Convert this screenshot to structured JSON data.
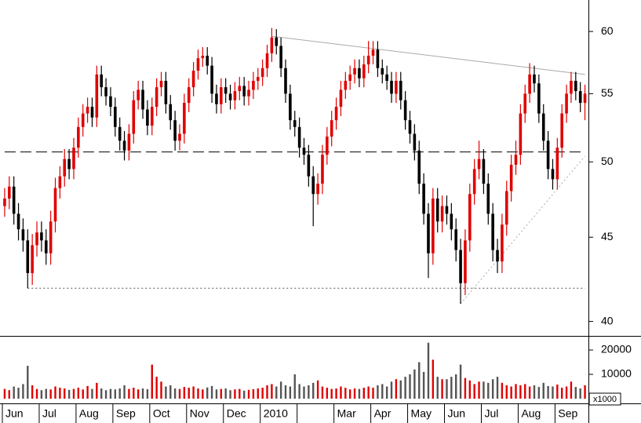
{
  "chart_data": {
    "type": "candlestick",
    "log_scale": true,
    "ylim": [
      39.2,
      62.7
    ],
    "yticks": [
      40,
      45,
      50,
      55,
      60
    ],
    "volume_ylim": [
      0,
      25800
    ],
    "volume_yticks": [
      10000,
      20000
    ],
    "volume_unit": "x1000",
    "up_color": "#e00000",
    "down_color": "#000000",
    "volume_up_color": "#e00000",
    "volume_down_color": "#555555",
    "x_labels": [
      {
        "label": "Jun",
        "start": 0
      },
      {
        "label": "Jul",
        "start": 8
      },
      {
        "label": "Aug",
        "start": 16
      },
      {
        "label": "Sep",
        "start": 24
      },
      {
        "label": "Oct",
        "start": 32
      },
      {
        "label": "Nov",
        "start": 40
      },
      {
        "label": "Dec",
        "start": 48
      },
      {
        "label": "2010",
        "start": 56
      },
      {
        "label": null,
        "start": 64
      },
      {
        "label": "Mar",
        "start": 72
      },
      {
        "label": "Apr",
        "start": 80
      },
      {
        "label": "May",
        "start": 88
      },
      {
        "label": "Jun",
        "start": 96
      },
      {
        "label": "Jul",
        "start": 104
      },
      {
        "label": "Aug",
        "start": 112
      },
      {
        "label": "Sep",
        "start": 120
      }
    ],
    "open": [
      47.0,
      47.5,
      48.3,
      46.5,
      45.5,
      44.8,
      42.8,
      44.5,
      45.3,
      44.8,
      44.0,
      46.0,
      48.2,
      49.0,
      50.2,
      49.5,
      51.0,
      52.5,
      53.5,
      54.0,
      53.2,
      56.5,
      55.5,
      54.8,
      54.0,
      52.5,
      51.5,
      50.8,
      52.0,
      54.5,
      55.3,
      53.8,
      52.6,
      54.0,
      55.5,
      56.0,
      54.2,
      53.0,
      51.5,
      52.0,
      54.3,
      55.5,
      56.8,
      57.8,
      58.0,
      57.2,
      55.0,
      54.2,
      55.5,
      55.0,
      54.5,
      55.2,
      55.6,
      54.8,
      55.3,
      56.0,
      56.3,
      57.0,
      58.2,
      59.5,
      58.8,
      57.0,
      55.0,
      53.0,
      52.5,
      51.0,
      50.5,
      49.0,
      47.8,
      48.5,
      50.5,
      51.8,
      53.0,
      54.0,
      55.3,
      56.0,
      56.5,
      57.0,
      56.2,
      57.3,
      58.0,
      58.5,
      57.0,
      56.5,
      56.0,
      55.0,
      56.0,
      54.5,
      53.0,
      52.0,
      50.8,
      48.5,
      46.5,
      44.0,
      47.5,
      46.0,
      47.0,
      46.5,
      45.5,
      44.2,
      42.2,
      44.8,
      47.8,
      49.5,
      50.2,
      48.5,
      46.5,
      44.2,
      43.5,
      45.8,
      48.0,
      49.8,
      50.5,
      53.5,
      55.0,
      56.5,
      55.8,
      53.5,
      51.5,
      49.5,
      48.8,
      51.0,
      53.5,
      55.0,
      56.0,
      55.2,
      54.3
    ],
    "high": [
      48.2,
      49.0,
      49.0,
      47.2,
      46.2,
      45.5,
      45.2,
      46.0,
      46.0,
      45.5,
      46.7,
      48.9,
      49.7,
      50.9,
      50.9,
      51.7,
      53.2,
      54.2,
      54.7,
      54.7,
      57.2,
      57.2,
      56.2,
      55.5,
      54.7,
      53.2,
      52.2,
      52.7,
      55.2,
      56.0,
      56.0,
      54.5,
      54.7,
      56.2,
      56.7,
      56.7,
      54.9,
      53.7,
      52.7,
      55.0,
      56.2,
      57.5,
      58.5,
      58.7,
      58.7,
      57.9,
      55.7,
      56.2,
      56.2,
      55.7,
      55.9,
      56.3,
      56.3,
      56.0,
      56.7,
      57.0,
      57.7,
      58.9,
      60.3,
      60.2,
      59.5,
      57.7,
      55.7,
      53.7,
      53.2,
      51.7,
      51.2,
      49.7,
      49.2,
      51.2,
      52.5,
      53.7,
      54.7,
      56.0,
      56.7,
      57.2,
      57.7,
      57.7,
      58.0,
      59.2,
      59.2,
      59.2,
      57.7,
      57.2,
      56.7,
      56.7,
      56.7,
      55.2,
      53.7,
      52.7,
      51.5,
      49.2,
      47.2,
      48.2,
      48.2,
      47.7,
      47.7,
      47.2,
      46.2,
      44.9,
      45.5,
      48.5,
      50.2,
      51.5,
      50.9,
      49.2,
      47.2,
      44.9,
      46.5,
      48.7,
      50.5,
      51.5,
      54.2,
      55.7,
      57.4,
      57.2,
      56.5,
      54.2,
      52.2,
      50.2,
      51.7,
      54.2,
      55.7,
      56.7,
      56.7,
      55.9,
      55.7
    ],
    "low": [
      46.3,
      46.8,
      45.8,
      44.8,
      44.1,
      41.9,
      42.1,
      43.8,
      44.1,
      43.3,
      43.3,
      45.3,
      47.5,
      48.3,
      48.8,
      48.8,
      50.3,
      51.8,
      52.8,
      52.5,
      52.5,
      54.8,
      54.1,
      53.3,
      51.8,
      50.8,
      50.1,
      50.1,
      51.3,
      53.8,
      53.1,
      51.9,
      51.9,
      53.3,
      54.8,
      53.5,
      52.3,
      50.8,
      50.8,
      51.3,
      53.6,
      54.8,
      56.1,
      57.1,
      56.5,
      54.3,
      53.5,
      53.5,
      54.3,
      53.8,
      53.8,
      54.5,
      54.1,
      54.1,
      54.6,
      55.3,
      55.6,
      56.3,
      57.5,
      58.1,
      56.3,
      54.3,
      52.3,
      51.8,
      50.3,
      49.8,
      48.3,
      45.7,
      47.1,
      47.8,
      49.8,
      51.1,
      52.3,
      53.3,
      54.6,
      55.3,
      55.8,
      55.5,
      55.5,
      56.6,
      57.3,
      56.3,
      55.8,
      55.3,
      54.3,
      54.3,
      53.8,
      52.3,
      51.3,
      50.1,
      47.8,
      45.8,
      42.5,
      43.3,
      45.3,
      45.3,
      45.8,
      44.8,
      43.5,
      41.0,
      41.5,
      44.1,
      47.1,
      48.8,
      47.8,
      45.8,
      43.5,
      42.8,
      42.8,
      45.1,
      47.3,
      49.1,
      49.8,
      52.8,
      54.3,
      55.1,
      52.8,
      50.8,
      48.8,
      48.1,
      48.1,
      50.3,
      52.8,
      54.3,
      54.5,
      53.6,
      53.0
    ],
    "close": [
      47.5,
      48.3,
      46.5,
      45.5,
      44.8,
      42.8,
      44.5,
      45.3,
      44.8,
      44.0,
      46.0,
      48.2,
      49.0,
      50.2,
      49.5,
      51.0,
      52.5,
      53.5,
      54.0,
      53.2,
      56.5,
      55.5,
      54.8,
      54.0,
      52.5,
      51.5,
      50.8,
      52.0,
      54.5,
      55.3,
      53.8,
      52.6,
      54.0,
      55.5,
      56.0,
      54.2,
      53.0,
      51.5,
      52.0,
      54.3,
      55.5,
      56.8,
      57.8,
      58.0,
      57.2,
      55.0,
      54.2,
      55.5,
      55.0,
      54.5,
      55.2,
      55.6,
      54.8,
      55.3,
      56.0,
      56.3,
      57.0,
      58.2,
      59.5,
      58.8,
      57.0,
      55.0,
      53.0,
      52.5,
      51.0,
      50.5,
      49.0,
      47.8,
      48.5,
      50.5,
      51.8,
      53.0,
      54.0,
      55.3,
      56.0,
      56.5,
      57.0,
      56.2,
      57.3,
      58.0,
      58.5,
      57.0,
      56.5,
      56.0,
      55.0,
      56.0,
      54.5,
      53.0,
      52.0,
      50.8,
      48.5,
      46.5,
      44.0,
      47.5,
      46.0,
      47.0,
      46.5,
      45.5,
      44.2,
      42.2,
      44.8,
      47.8,
      49.5,
      50.2,
      48.5,
      46.5,
      44.2,
      43.5,
      45.8,
      48.0,
      49.8,
      50.5,
      53.5,
      55.0,
      56.5,
      55.8,
      53.5,
      51.5,
      49.5,
      48.8,
      51.0,
      53.5,
      55.0,
      56.0,
      55.2,
      54.3,
      55.0
    ],
    "volume": [
      4000,
      3500,
      5000,
      4500,
      6000,
      13500,
      5500,
      4000,
      3500,
      4000,
      3800,
      5000,
      4500,
      4200,
      3600,
      4000,
      4500,
      3800,
      5200,
      4000,
      6500,
      4200,
      3500,
      4000,
      3800,
      4200,
      5500,
      4000,
      4500,
      3800,
      4200,
      3900,
      14000,
      9000,
      7000,
      5000,
      5500,
      4200,
      4000,
      4800,
      4500,
      5000,
      4200,
      3800,
      4600,
      5200,
      3800,
      4000,
      4200,
      3500,
      3800,
      4000,
      3300,
      3600,
      3900,
      4200,
      4500,
      5500,
      6000,
      5000,
      7000,
      5500,
      5000,
      10000,
      6000,
      5000,
      5500,
      6500,
      7500,
      5000,
      4500,
      4000,
      4200,
      5000,
      4500,
      3800,
      4200,
      4000,
      4500,
      5000,
      4500,
      5500,
      6000,
      5000,
      7000,
      8000,
      7500,
      9000,
      10000,
      12000,
      15000,
      11000,
      23000,
      16000,
      9000,
      8000,
      8000,
      9000,
      10000,
      14000,
      8500,
      7500,
      6000,
      7000,
      7000,
      6500,
      8000,
      9000,
      6500,
      5500,
      5000,
      6000,
      5500,
      6000,
      5000,
      5500,
      4800,
      6500,
      5200,
      5000,
      5800,
      4500,
      5000,
      7000,
      4800,
      4200,
      5500
    ],
    "lines": [
      {
        "style": "dashed",
        "color": "#000000",
        "x": [
          0,
          126
        ],
        "y": [
          50.7,
          50.7
        ]
      },
      {
        "style": "dotted",
        "color": "#555555",
        "x": [
          5,
          126
        ],
        "y": [
          41.9,
          41.9
        ]
      },
      {
        "style": "solid",
        "color": "#aaaaaa",
        "x": [
          58,
          126
        ],
        "y": [
          59.6,
          56.5
        ]
      },
      {
        "style": "dotted",
        "color": "#aaaaaa",
        "x": [
          99,
          126
        ],
        "y": [
          41.0,
          50.4
        ]
      }
    ]
  }
}
